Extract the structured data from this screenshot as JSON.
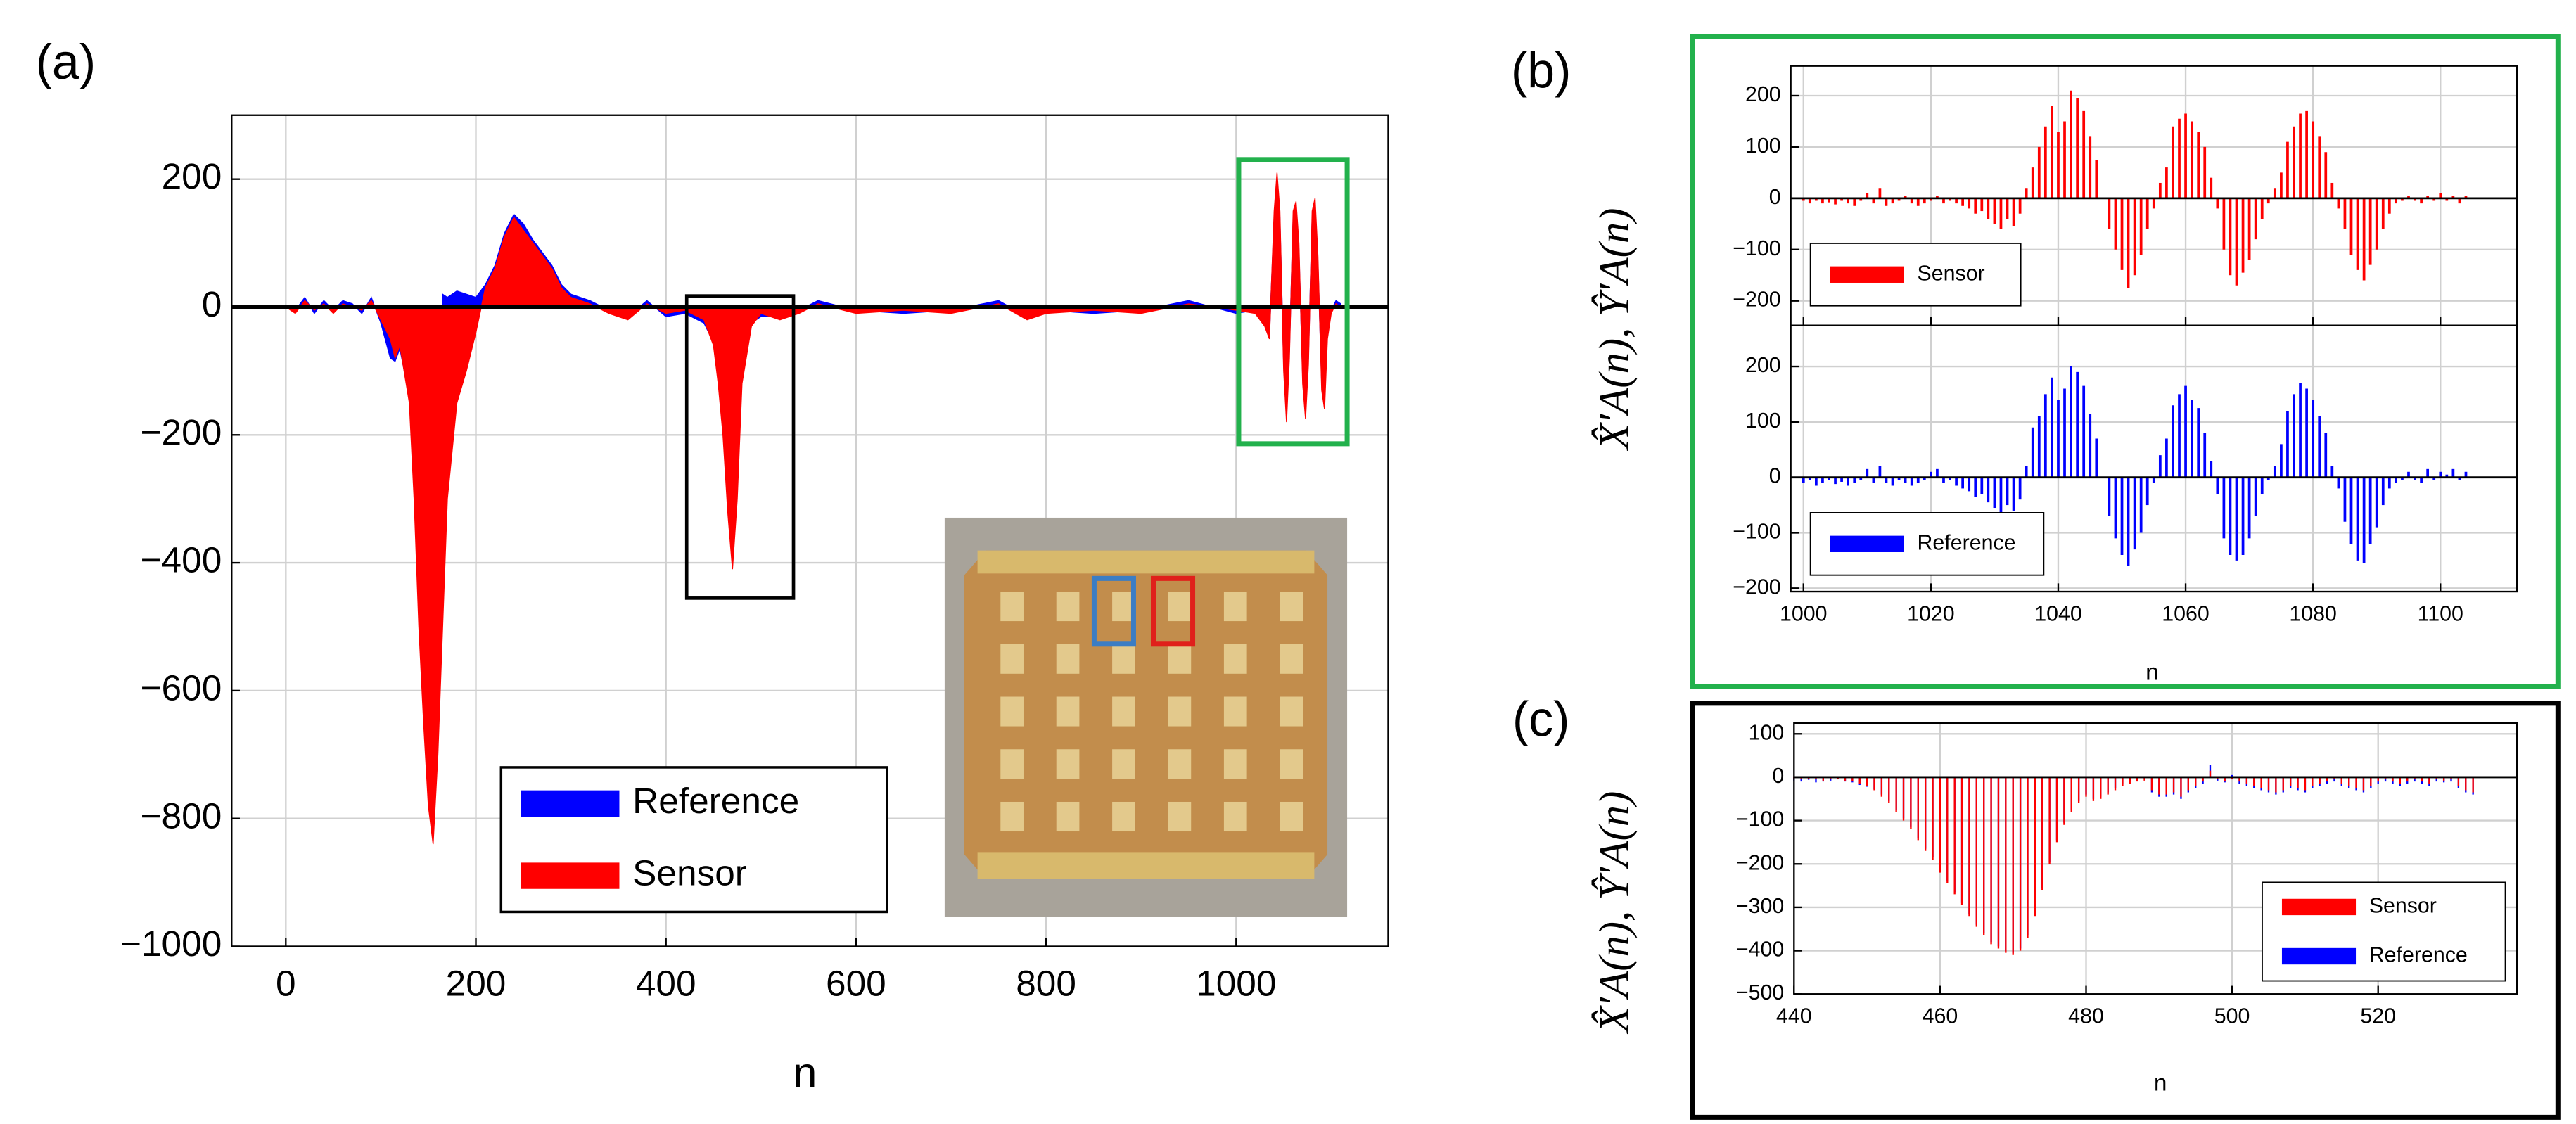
{
  "chart_data": [
    {
      "type": "area",
      "panel_label": "(a)",
      "xlabel": "n",
      "xlim": [
        -57,
        1160
      ],
      "ylim": [
        -1000,
        300
      ],
      "xticks": [
        0,
        200,
        400,
        600,
        800,
        1000
      ],
      "yticks": [
        {
          "value": -1000,
          "label": "−1000"
        },
        {
          "value": -800,
          "label": "−800"
        },
        {
          "value": -600,
          "label": "−600"
        },
        {
          "value": -400,
          "label": "−400"
        },
        {
          "value": -200,
          "label": "−200"
        },
        0,
        200
      ],
      "grid": true,
      "legend": "lower center",
      "x": [
        0,
        10,
        20,
        30,
        40,
        50,
        60,
        70,
        80,
        90,
        100,
        110,
        115,
        120,
        130,
        135,
        140,
        145,
        150,
        155,
        160,
        165,
        170,
        180,
        190,
        200,
        210,
        220,
        230,
        240,
        250,
        260,
        270,
        280,
        290,
        300,
        320,
        340,
        360,
        380,
        400,
        420,
        440,
        450,
        455,
        460,
        465,
        470,
        475,
        480,
        490,
        500,
        520,
        540,
        560,
        600,
        650,
        700,
        750,
        780,
        800,
        850,
        900,
        950,
        1000,
        1020,
        1030,
        1035,
        1040,
        1043,
        1046,
        1050,
        1053,
        1056,
        1060,
        1063,
        1066,
        1070,
        1073,
        1076,
        1080,
        1083,
        1086,
        1090,
        1093,
        1096,
        1100,
        1105,
        1110
      ],
      "series": [
        {
          "name": "Reference",
          "color": "#0000ff",
          "values": [
            0,
            -5,
            15,
            -10,
            10,
            -5,
            10,
            5,
            -10,
            15,
            -25,
            -80,
            -85,
            -65,
            -140,
            -280,
            -480,
            -620,
            -760,
            -820,
            -650,
            20,
            15,
            25,
            20,
            15,
            35,
            65,
            115,
            145,
            130,
            105,
            85,
            65,
            35,
            20,
            10,
            -5,
            -15,
            10,
            -15,
            -10,
            -25,
            -55,
            -110,
            -190,
            -300,
            -390,
            -280,
            -100,
            -25,
            -15,
            -15,
            -5,
            10,
            -5,
            -10,
            -5,
            10,
            -15,
            -5,
            -10,
            -5,
            10,
            -10,
            -5,
            -25,
            -45,
            140,
            200,
            140,
            -90,
            -170,
            -70,
            140,
            160,
            90,
            -110,
            -165,
            -80,
            140,
            160,
            70,
            -120,
            -150,
            -40,
            -5,
            10,
            5
          ]
        },
        {
          "name": "Sensor",
          "color": "#ff0000",
          "values": [
            0,
            -10,
            10,
            -5,
            5,
            -10,
            5,
            0,
            -5,
            10,
            -20,
            -50,
            -80,
            -60,
            -150,
            -300,
            -500,
            -650,
            -780,
            -840,
            -700,
            -500,
            -300,
            -150,
            -100,
            -40,
            30,
            60,
            110,
            140,
            120,
            100,
            80,
            60,
            30,
            15,
            5,
            -10,
            -20,
            5,
            -10,
            -5,
            -20,
            -60,
            -120,
            -200,
            -320,
            -410,
            -300,
            -120,
            -30,
            -10,
            -20,
            -10,
            5,
            -10,
            -5,
            -10,
            5,
            -20,
            -10,
            -5,
            -10,
            5,
            -5,
            -10,
            -30,
            -50,
            150,
            210,
            150,
            -100,
            -180,
            -80,
            150,
            165,
            100,
            -120,
            -175,
            -90,
            150,
            170,
            80,
            -130,
            -160,
            -50,
            -10,
            5,
            0
          ]
        }
      ]
    },
    {
      "type": "stem",
      "panel_label": "(b)",
      "ylabel": "X̂′A(n), Ŷ′A(n)",
      "xlim": [
        998,
        1112
      ],
      "ylim": [
        -248,
        258
      ],
      "xticks": [
        1000,
        1020,
        1040,
        1060,
        1080,
        1100
      ],
      "yticks": [
        {
          "value": -200,
          "label": "−200"
        },
        {
          "value": -100,
          "label": "−100"
        },
        0,
        100,
        200
      ],
      "grid": true,
      "legend": "lower left",
      "x": [
        1000,
        1001,
        1002,
        1003,
        1004,
        1005,
        1006,
        1007,
        1008,
        1009,
        1010,
        1011,
        1012,
        1013,
        1014,
        1015,
        1016,
        1017,
        1018,
        1019,
        1020,
        1021,
        1022,
        1023,
        1024,
        1025,
        1026,
        1027,
        1028,
        1029,
        1030,
        1031,
        1032,
        1033,
        1034,
        1035,
        1036,
        1037,
        1038,
        1039,
        1040,
        1041,
        1042,
        1043,
        1044,
        1045,
        1046,
        1047,
        1048,
        1049,
        1050,
        1051,
        1052,
        1053,
        1054,
        1055,
        1056,
        1057,
        1058,
        1059,
        1060,
        1061,
        1062,
        1063,
        1064,
        1065,
        1066,
        1067,
        1068,
        1069,
        1070,
        1071,
        1072,
        1073,
        1074,
        1075,
        1076,
        1077,
        1078,
        1079,
        1080,
        1081,
        1082,
        1083,
        1084,
        1085,
        1086,
        1087,
        1088,
        1089,
        1090,
        1091,
        1092,
        1093,
        1094,
        1095,
        1096,
        1097,
        1098,
        1099,
        1100,
        1101,
        1102,
        1103,
        1104,
        1105
      ],
      "series": [
        {
          "name": "Sensor",
          "color": "#ff0000",
          "values": [
            -5,
            -10,
            -5,
            -10,
            -8,
            -12,
            -5,
            -10,
            -15,
            -5,
            10,
            -10,
            20,
            -15,
            -10,
            -5,
            5,
            -10,
            -15,
            -10,
            -5,
            5,
            -10,
            -5,
            -10,
            -15,
            -20,
            -30,
            -25,
            -40,
            -50,
            -60,
            -40,
            -55,
            -30,
            20,
            60,
            100,
            140,
            180,
            130,
            150,
            210,
            195,
            170,
            120,
            75,
            0,
            -60,
            -100,
            -140,
            -175,
            -150,
            -110,
            -60,
            -20,
            30,
            60,
            140,
            155,
            165,
            150,
            130,
            100,
            40,
            -20,
            -100,
            -150,
            -170,
            -145,
            -120,
            -80,
            -40,
            -10,
            20,
            50,
            110,
            140,
            165,
            170,
            150,
            120,
            90,
            30,
            -20,
            -60,
            -110,
            -140,
            -160,
            -130,
            -100,
            -60,
            -30,
            -10,
            -5,
            5,
            -5,
            -10,
            5,
            -5,
            10,
            -5,
            5,
            -10,
            5,
            0
          ]
        }
      ]
    },
    {
      "type": "stem",
      "xlabel": "n",
      "xlim": [
        998,
        1112
      ],
      "ylim": [
        -206,
        274
      ],
      "xticks": [
        1000,
        1020,
        1040,
        1060,
        1080,
        1100
      ],
      "yticks": [
        {
          "value": -200,
          "label": "−200"
        },
        {
          "value": -100,
          "label": "−100"
        },
        0,
        100,
        200
      ],
      "grid": true,
      "legend": "lower left",
      "x": [
        1000,
        1001,
        1002,
        1003,
        1004,
        1005,
        1006,
        1007,
        1008,
        1009,
        1010,
        1011,
        1012,
        1013,
        1014,
        1015,
        1016,
        1017,
        1018,
        1019,
        1020,
        1021,
        1022,
        1023,
        1024,
        1025,
        1026,
        1027,
        1028,
        1029,
        1030,
        1031,
        1032,
        1033,
        1034,
        1035,
        1036,
        1037,
        1038,
        1039,
        1040,
        1041,
        1042,
        1043,
        1044,
        1045,
        1046,
        1047,
        1048,
        1049,
        1050,
        1051,
        1052,
        1053,
        1054,
        1055,
        1056,
        1057,
        1058,
        1059,
        1060,
        1061,
        1062,
        1063,
        1064,
        1065,
        1066,
        1067,
        1068,
        1069,
        1070,
        1071,
        1072,
        1073,
        1074,
        1075,
        1076,
        1077,
        1078,
        1079,
        1080,
        1081,
        1082,
        1083,
        1084,
        1085,
        1086,
        1087,
        1088,
        1089,
        1090,
        1091,
        1092,
        1093,
        1094,
        1095,
        1096,
        1097,
        1098,
        1099,
        1100,
        1101,
        1102,
        1103,
        1104,
        1105
      ],
      "series": [
        {
          "name": "Reference",
          "color": "#0000ff",
          "values": [
            -10,
            -5,
            -15,
            -10,
            -5,
            -12,
            -8,
            -15,
            -10,
            -5,
            15,
            -10,
            20,
            -10,
            -15,
            -5,
            -10,
            -15,
            -10,
            -5,
            10,
            15,
            -10,
            -5,
            -15,
            -20,
            -25,
            -35,
            -30,
            -45,
            -55,
            -65,
            -50,
            -60,
            -40,
            20,
            90,
            110,
            150,
            180,
            140,
            160,
            200,
            190,
            165,
            115,
            70,
            0,
            -70,
            -110,
            -140,
            -160,
            -130,
            -100,
            -50,
            -10,
            40,
            70,
            130,
            150,
            165,
            140,
            125,
            80,
            30,
            -30,
            -110,
            -140,
            -150,
            -140,
            -110,
            -70,
            -30,
            -5,
            20,
            60,
            120,
            150,
            170,
            160,
            140,
            110,
            80,
            20,
            -20,
            -80,
            -120,
            -150,
            -155,
            -120,
            -90,
            -50,
            -20,
            -10,
            -5,
            10,
            -5,
            -10,
            15,
            -5,
            10,
            5,
            15,
            -5,
            10,
            0
          ]
        }
      ]
    },
    {
      "type": "stem",
      "panel_label": "(c)",
      "xlabel": "n",
      "ylabel": "X̂′A(n), Ŷ′A(n)",
      "xlim": [
        440,
        539
      ],
      "ylim": [
        -500,
        125
      ],
      "xticks": [
        440,
        460,
        480,
        500,
        520
      ],
      "yticks": [
        {
          "value": -500,
          "label": "−500"
        },
        {
          "value": -400,
          "label": "−400"
        },
        {
          "value": -300,
          "label": "−300"
        },
        {
          "value": -200,
          "label": "−200"
        },
        {
          "value": -100,
          "label": "−100"
        },
        0,
        100
      ],
      "grid": true,
      "legend": "lower right",
      "x": [
        440,
        441,
        442,
        443,
        444,
        445,
        446,
        447,
        448,
        449,
        450,
        451,
        452,
        453,
        454,
        455,
        456,
        457,
        458,
        459,
        460,
        461,
        462,
        463,
        464,
        465,
        466,
        467,
        468,
        469,
        470,
        471,
        472,
        473,
        474,
        475,
        476,
        477,
        478,
        479,
        480,
        481,
        482,
        483,
        484,
        485,
        486,
        487,
        488,
        489,
        490,
        491,
        492,
        493,
        494,
        495,
        496,
        497,
        498,
        499,
        500,
        501,
        502,
        503,
        504,
        505,
        506,
        507,
        508,
        509,
        510,
        511,
        512,
        513,
        514,
        515,
        516,
        517,
        518,
        519,
        520,
        521,
        522,
        523,
        524,
        525,
        526,
        527,
        528,
        529,
        530,
        531,
        532,
        533
      ],
      "series": [
        {
          "name": "Sensor",
          "color": "#ff0000",
          "values": [
            -5,
            -5,
            -5,
            -5,
            -8,
            -5,
            -5,
            -8,
            -10,
            -15,
            -20,
            -30,
            -45,
            -60,
            -80,
            -100,
            -120,
            -145,
            -170,
            -190,
            -220,
            -245,
            -270,
            -295,
            -320,
            -345,
            -365,
            -385,
            -395,
            -405,
            -410,
            -400,
            -370,
            -320,
            -260,
            -200,
            -150,
            -110,
            -80,
            -60,
            -45,
            -55,
            -50,
            -40,
            -30,
            -20,
            -15,
            -10,
            -8,
            -30,
            -40,
            -40,
            -35,
            -45,
            -30,
            -20,
            -10,
            15,
            -5,
            -10,
            -5,
            -10,
            -15,
            -20,
            -25,
            -30,
            -35,
            -30,
            -20,
            -25,
            -30,
            -20,
            -15,
            -10,
            -5,
            -15,
            -20,
            -25,
            -30,
            -20,
            -10,
            -5,
            -10,
            -15,
            -10,
            -5,
            -10,
            -15,
            -5,
            -8,
            -5,
            -20,
            -30,
            -35
          ]
        },
        {
          "name": "Reference",
          "color": "#0000ff",
          "values": [
            -8,
            -10,
            -6,
            -12,
            -10,
            -8,
            -5,
            -10,
            -12,
            -18,
            -22,
            -28,
            -40,
            -55,
            -75,
            -95,
            -115,
            -140,
            -165,
            -185,
            -215,
            -240,
            -265,
            -290,
            -315,
            -340,
            -360,
            -380,
            -390,
            -400,
            -405,
            -395,
            -365,
            -315,
            -255,
            -195,
            -145,
            -105,
            -75,
            -55,
            -40,
            -50,
            -45,
            -35,
            -25,
            -15,
            -10,
            -5,
            -5,
            -35,
            -45,
            -45,
            -40,
            -50,
            -35,
            -25,
            -15,
            28,
            -8,
            -12,
            5,
            -15,
            -20,
            -25,
            -30,
            -35,
            -40,
            -35,
            -25,
            -30,
            -35,
            -25,
            -20,
            -15,
            -10,
            -20,
            -25,
            -30,
            -35,
            -25,
            -15,
            -10,
            -15,
            -20,
            -15,
            -10,
            -15,
            -20,
            -10,
            -12,
            -10,
            -25,
            -35,
            -40
          ]
        }
      ]
    }
  ]
}
